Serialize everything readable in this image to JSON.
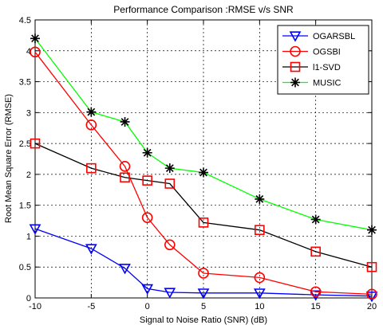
{
  "chart_data": {
    "type": "line",
    "title": "Performance Comparison :RMSE v/s SNR",
    "xlabel": "Signal to Noise Ratio (SNR) (dB)",
    "ylabel": "Root Mean Square Error (RMSE)",
    "xlim": [
      -10,
      20
    ],
    "ylim": [
      0,
      4.5
    ],
    "x_ticks": [
      -10,
      -5,
      0,
      5,
      10,
      15,
      20
    ],
    "y_ticks": [
      0,
      0.5,
      1,
      1.5,
      2,
      2.5,
      3,
      3.5,
      4,
      4.5
    ],
    "x_tick_labels": [
      "-10",
      "-5",
      "0",
      "5",
      "10",
      "15",
      "20"
    ],
    "y_tick_labels": [
      "0",
      "0.5",
      "1",
      "1.5",
      "2",
      "2.5",
      "3",
      "3.5",
      "4",
      "4.5"
    ],
    "grid": true,
    "legend_position": "top-right",
    "series": [
      {
        "name": "OGARSBL",
        "color": "#0000ff",
        "marker": "triangle-down",
        "x": [
          -10,
          -5,
          -2,
          0,
          2,
          5,
          10,
          15,
          20
        ],
        "y": [
          1.12,
          0.8,
          0.48,
          0.15,
          0.09,
          0.08,
          0.08,
          0.05,
          0.03
        ]
      },
      {
        "name": "OGSBI",
        "color": "#ff0000",
        "marker": "circle",
        "x": [
          -10,
          -5,
          -2,
          0,
          2,
          5,
          10,
          15,
          20
        ],
        "y": [
          3.98,
          2.8,
          2.13,
          1.3,
          0.86,
          0.4,
          0.33,
          0.1,
          0.06
        ]
      },
      {
        "name": "l1-SVD",
        "color": "#000000",
        "marker_color": "#ff0000",
        "marker": "square",
        "x": [
          -10,
          -5,
          -2,
          0,
          2,
          5,
          10,
          15,
          20
        ],
        "y": [
          2.5,
          2.1,
          1.95,
          1.9,
          1.85,
          1.22,
          1.1,
          0.75,
          0.5
        ]
      },
      {
        "name": "MUSIC",
        "color": "#00ff00",
        "marker_color": "#000000",
        "marker": "star",
        "x": [
          -10,
          -5,
          -2,
          0,
          2,
          5,
          10,
          15,
          20
        ],
        "y": [
          4.2,
          3.01,
          2.85,
          2.35,
          2.1,
          2.03,
          1.6,
          1.27,
          1.1
        ]
      }
    ]
  }
}
